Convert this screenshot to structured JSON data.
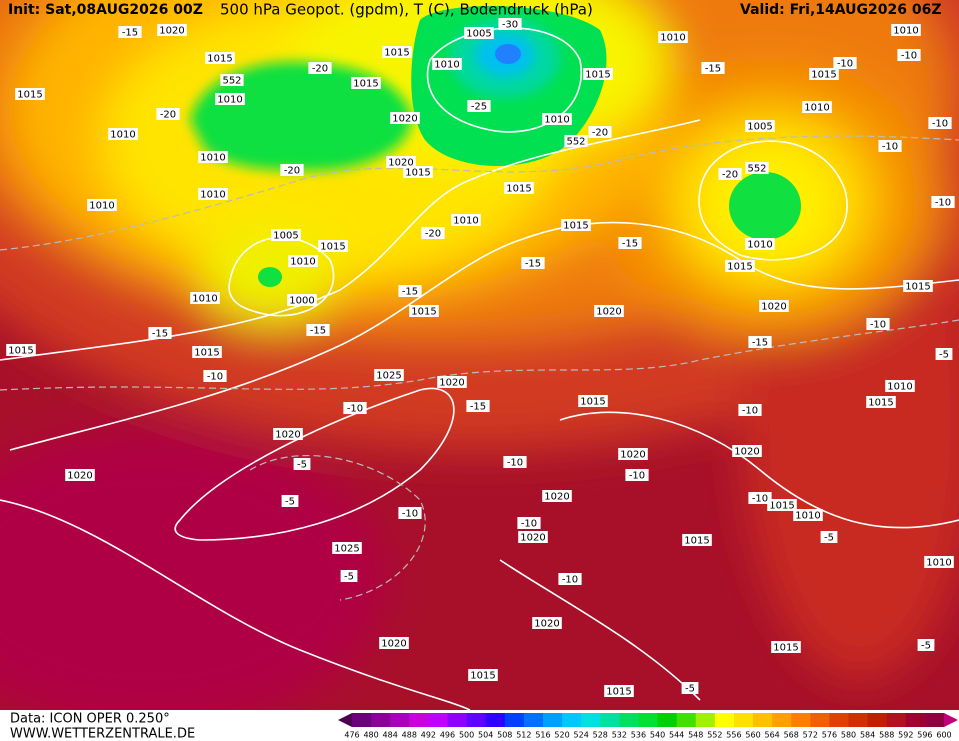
{
  "header": {
    "init": "Init: Sat,08AUG2026 00Z",
    "title": "500 hPa Geopot. (gpdm), T (C), Bodendruck (hPa)",
    "valid": "Valid: Fri,14AUG2026 06Z"
  },
  "footer": {
    "data_source": "Data: ICON OPER 0.250°",
    "website": "WWW.WETTERZENTRALE.DE"
  },
  "isobar_labels": [
    "1020",
    "1015",
    "552",
    "1010",
    "1015",
    "1010",
    "1010",
    "1010",
    "1010",
    "1005",
    "1015",
    "1010",
    "1000",
    "1010",
    "1015",
    "1015",
    "1015",
    "1015",
    "1005",
    "1010",
    "1015",
    "1010",
    "552",
    "1020",
    "1020",
    "1015",
    "1015",
    "1010",
    "1015",
    "1015",
    "1020",
    "1025",
    "1020",
    "1020",
    "1025",
    "1015",
    "1020",
    "1020",
    "1010",
    "1015",
    "1010",
    "1005",
    "552",
    "1010",
    "1015",
    "1010",
    "1015",
    "1010",
    "1015",
    "1020",
    "1020",
    "1015",
    "1010",
    "1020",
    "1020",
    "1015",
    "1020",
    "1015",
    "1015",
    "1015",
    "1020",
    "1010"
  ],
  "isotherm_labels": [
    "-15",
    "-20",
    "-20",
    "-20",
    "-25",
    "-30",
    "-20",
    "-20",
    "-15",
    "-15",
    "-15",
    "-15",
    "-15",
    "-10",
    "-10",
    "-15",
    "-10",
    "-5",
    "-5",
    "-10",
    "-5",
    "-10",
    "-10",
    "-10",
    "-10",
    "-15",
    "-10",
    "-10",
    "-10",
    "-10",
    "-10",
    "-15",
    "-20",
    "-10",
    "-5",
    "-5",
    "-5",
    "-5",
    "-10"
  ],
  "colorbar": {
    "ticks": [
      476,
      480,
      484,
      488,
      492,
      496,
      500,
      504,
      508,
      512,
      516,
      520,
      524,
      528,
      532,
      536,
      540,
      544,
      548,
      552,
      556,
      560,
      564,
      568,
      572,
      576,
      580,
      584,
      588,
      592,
      596,
      600
    ],
    "colors": [
      "#4b0050",
      "#6a007a",
      "#8a0099",
      "#aa00bb",
      "#cc00dd",
      "#c000ff",
      "#9000ff",
      "#6000ff",
      "#3000ff",
      "#0040ff",
      "#0070ff",
      "#00a0ff",
      "#00c8ff",
      "#00e0e0",
      "#00e0a0",
      "#00e060",
      "#00e030",
      "#00d000",
      "#40e000",
      "#a0f000",
      "#ffff00",
      "#ffe000",
      "#ffc000",
      "#ffa000",
      "#ff8000",
      "#f06000",
      "#e04000",
      "#d03000",
      "#c02000",
      "#b01020",
      "#a00030",
      "#900040",
      "#c0007a"
    ]
  }
}
